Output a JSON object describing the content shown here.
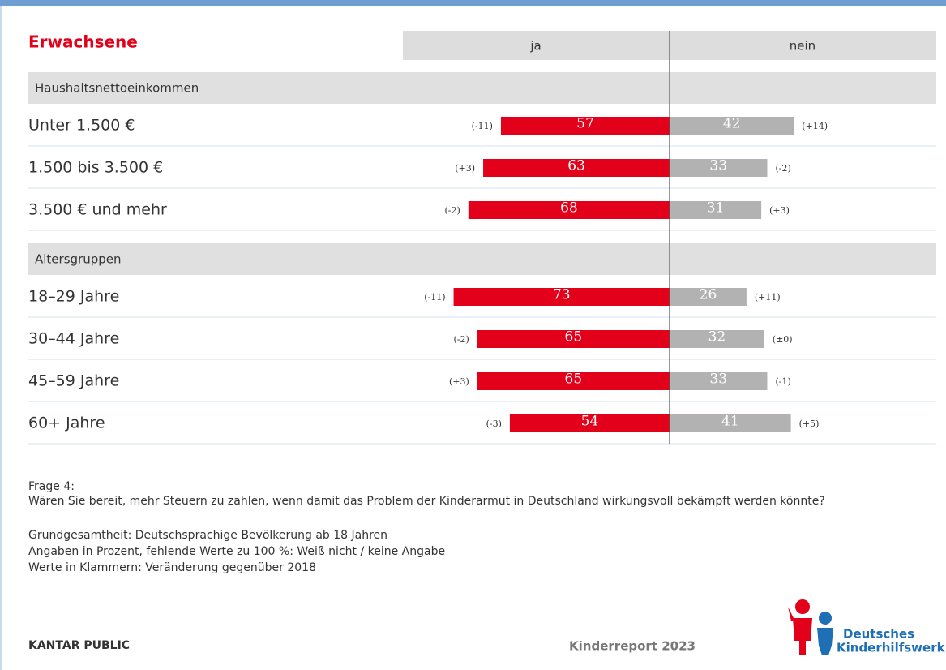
{
  "chart_data": {
    "type": "diverging_bar",
    "title": "Erwachsene",
    "series": [
      {
        "name": "ja",
        "color": "#e2001a"
      },
      {
        "name": "nein",
        "color": "#b2b2b2"
      }
    ],
    "groups": [
      {
        "name": "Haushaltsnettoeinkommen",
        "categories": [
          "Unter 1.500 €",
          "1.500 bis 3.500 €",
          "3.500 € und mehr"
        ],
        "series": [
          {
            "values": [
              57,
              63,
              68
            ],
            "change_labels": [
              "(-11)",
              "(+3)",
              "(-2)"
            ]
          },
          {
            "values": [
              42,
              33,
              31
            ],
            "change_labels": [
              "(+14)",
              "(-2)",
              "(+3)"
            ]
          }
        ]
      },
      {
        "name": "Altersgruppen",
        "categories": [
          "18–29 Jahre",
          "30–44 Jahre",
          "45–59 Jahre",
          "60+ Jahre"
        ],
        "series": [
          {
            "values": [
              73,
              65,
              65,
              54
            ],
            "change_labels": [
              "(-11)",
              "(-2)",
              "(+3)",
              "(-3)"
            ]
          },
          {
            "values": [
              26,
              32,
              33,
              41
            ],
            "change_labels": [
              "(+11)",
              "(±0)",
              "(-1)",
              "(+5)"
            ]
          }
        ]
      }
    ]
  },
  "footer": {
    "notes": [
      "Frage 4:",
      "Wären Sie bereit, mehr Steuern zu zahlen, wenn damit das Problem der Kinderarmut in Deutschland wirkungsvoll bekämpft werden könnte?",
      "Grundgesamtheit: Deutschsprachige Bevölkerung ab 18 Jahren",
      "Angaben in Prozent, fehlende Werte zu 100 %: Weiß nicht / keine Angabe",
      "Werte in Klammern: Veränderung gegenüber 2018"
    ],
    "source": "KANTAR PUBLIC",
    "report": "Kinderreport 2023",
    "logo": [
      "Deutsches",
      "Kinderhilfswerk"
    ]
  }
}
